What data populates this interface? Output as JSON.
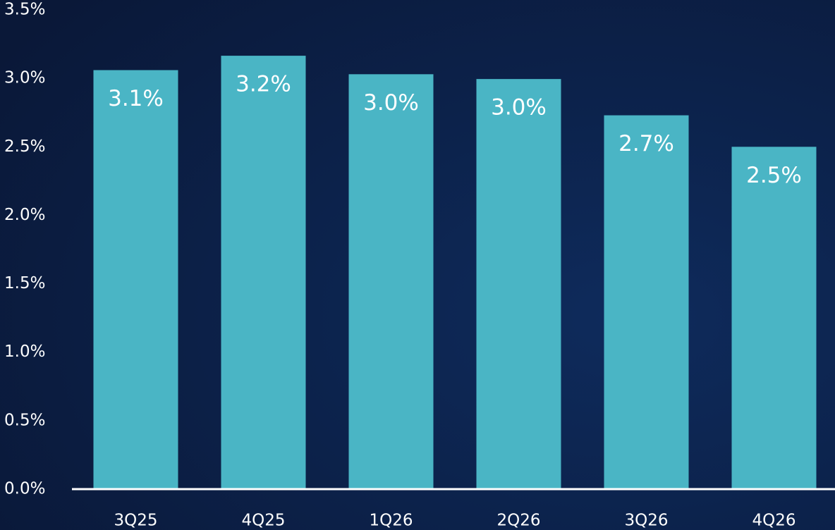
{
  "chart_data": {
    "type": "bar",
    "categories": [
      "3Q25",
      "4Q25",
      "1Q26",
      "2Q26",
      "3Q26",
      "4Q26"
    ],
    "values": [
      3.06,
      3.165,
      3.03,
      2.995,
      2.73,
      2.5
    ],
    "value_labels": [
      "3.1%",
      "3.2%",
      "3.0%",
      "3.0%",
      "2.7%",
      "2.5%"
    ],
    "color": "#4ab5c5",
    "ylim": [
      0,
      3.5
    ],
    "yticks": [
      {
        "value": 0,
        "label": "0.0%"
      },
      {
        "value": 0.5,
        "label": "0.5%"
      },
      {
        "value": 1,
        "label": "1.0%"
      },
      {
        "value": 1.5,
        "label": "1.5%"
      },
      {
        "value": 2,
        "label": "2.0%"
      },
      {
        "value": 2.5,
        "label": "2.5%"
      },
      {
        "value": 3,
        "label": "3.0%"
      },
      {
        "value": 3.5,
        "label": "3.5%"
      }
    ],
    "grid": false
  }
}
